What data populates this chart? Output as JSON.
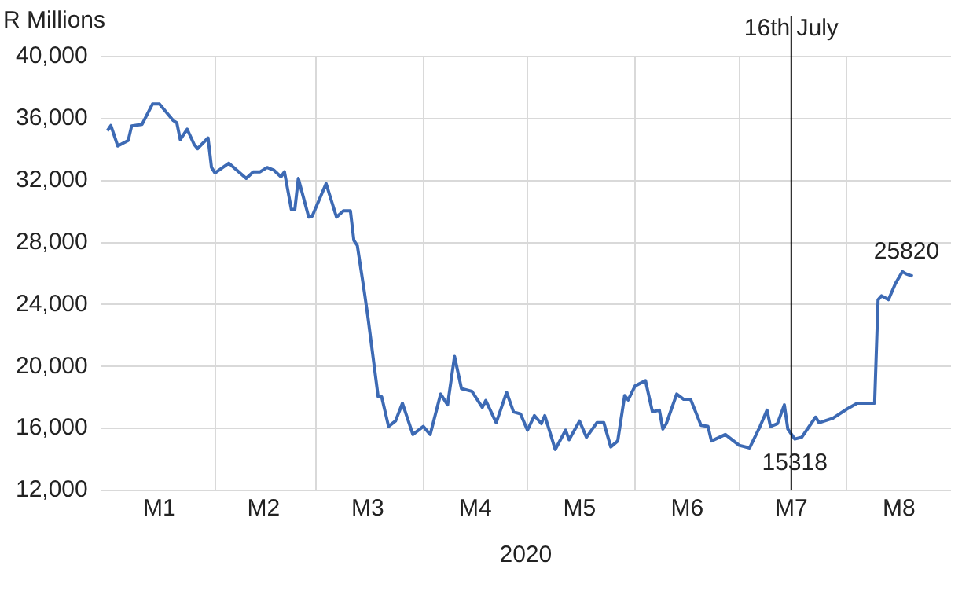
{
  "chart_data": {
    "type": "line",
    "ylabel": "R Millions",
    "xlabel": "2020",
    "x": [
      "2020-01-01",
      "2020-01-02",
      "2020-01-04",
      "2020-01-07",
      "2020-01-08",
      "2020-01-11",
      "2020-01-14",
      "2020-01-16",
      "2020-01-20",
      "2020-01-21",
      "2020-01-22",
      "2020-01-24",
      "2020-01-26",
      "2020-01-27",
      "2020-01-30",
      "2020-01-31",
      "2020-02-01",
      "2020-02-05",
      "2020-02-10",
      "2020-02-12",
      "2020-02-14",
      "2020-02-16",
      "2020-02-18",
      "2020-02-20",
      "2020-02-21",
      "2020-02-23",
      "2020-02-24",
      "2020-02-25",
      "2020-02-28",
      "2020-02-29",
      "2020-03-04",
      "2020-03-07",
      "2020-03-09",
      "2020-03-11",
      "2020-03-12",
      "2020-03-13",
      "2020-03-15",
      "2020-03-16",
      "2020-03-19",
      "2020-03-20",
      "2020-03-22",
      "2020-03-24",
      "2020-03-26",
      "2020-03-29",
      "2020-04-01",
      "2020-04-03",
      "2020-04-06",
      "2020-04-08",
      "2020-04-10",
      "2020-04-12",
      "2020-04-15",
      "2020-04-18",
      "2020-04-19",
      "2020-04-22",
      "2020-04-25",
      "2020-04-27",
      "2020-04-29",
      "2020-05-01",
      "2020-05-03",
      "2020-05-05",
      "2020-05-06",
      "2020-05-09",
      "2020-05-12",
      "2020-05-13",
      "2020-05-16",
      "2020-05-18",
      "2020-05-21",
      "2020-05-23",
      "2020-05-25",
      "2020-05-27",
      "2020-05-29",
      "2020-05-30",
      "2020-06-01",
      "2020-06-04",
      "2020-06-06",
      "2020-06-08",
      "2020-06-09",
      "2020-06-10",
      "2020-06-13",
      "2020-06-15",
      "2020-06-17",
      "2020-06-20",
      "2020-06-22",
      "2020-06-23",
      "2020-06-27",
      "2020-07-01",
      "2020-07-04",
      "2020-07-07",
      "2020-07-09",
      "2020-07-10",
      "2020-07-12",
      "2020-07-14",
      "2020-07-15",
      "2020-07-17",
      "2020-07-19",
      "2020-07-23",
      "2020-07-24",
      "2020-07-28",
      "2020-08-01",
      "2020-08-04",
      "2020-08-09",
      "2020-08-10",
      "2020-08-11",
      "2020-08-13",
      "2020-08-15",
      "2020-08-17",
      "2020-08-18",
      "2020-08-20"
    ],
    "series": [
      {
        "color": "#3d6ab4",
        "values": [
          35210,
          35550,
          34230,
          34580,
          35530,
          35630,
          36940,
          36940,
          35870,
          35730,
          34640,
          35310,
          34330,
          34060,
          34750,
          32840,
          32490,
          33120,
          32140,
          32560,
          32560,
          32840,
          32660,
          32240,
          32560,
          30130,
          30130,
          32140,
          29640,
          29700,
          31800,
          29640,
          30050,
          30050,
          28140,
          27800,
          24840,
          23270,
          18050,
          18050,
          16130,
          16480,
          17630,
          15610,
          16130,
          15610,
          18220,
          17520,
          20650,
          18570,
          18400,
          17360,
          17800,
          16370,
          18330,
          17070,
          16940,
          15890,
          16830,
          16310,
          16830,
          14640,
          15890,
          15270,
          16480,
          15430,
          16370,
          16370,
          14810,
          15190,
          18120,
          17840,
          18740,
          19090,
          17070,
          17180,
          15960,
          16310,
          18220,
          17880,
          17880,
          16200,
          16130,
          15190,
          15610,
          14910,
          14740,
          16130,
          17180,
          16130,
          16310,
          17520,
          15960,
          15318,
          15430,
          16730,
          16370,
          16660,
          17250,
          17630,
          17630,
          24310,
          24560,
          24310,
          25350,
          26120,
          25980,
          25820
        ]
      }
    ],
    "xlim": [
      "2019-12-30",
      "2020-08-31"
    ],
    "xticks": [
      {
        "value": "2020-01-16",
        "label": "M1"
      },
      {
        "value": "2020-02-01",
        "label": null
      },
      {
        "value": "2020-02-15",
        "label": "M2"
      },
      {
        "value": "2020-03-01",
        "label": null
      },
      {
        "value": "2020-03-16",
        "label": "M3"
      },
      {
        "value": "2020-04-01",
        "label": null
      },
      {
        "value": "2020-04-16",
        "label": "M4"
      },
      {
        "value": "2020-05-01",
        "label": null
      },
      {
        "value": "2020-05-16",
        "label": "M5"
      },
      {
        "value": "2020-06-01",
        "label": null
      },
      {
        "value": "2020-06-16",
        "label": "M6"
      },
      {
        "value": "2020-07-01",
        "label": null
      },
      {
        "value": "2020-07-16",
        "label": "M7"
      },
      {
        "value": "2020-08-01",
        "label": null
      },
      {
        "value": "2020-08-16",
        "label": "M8"
      }
    ],
    "ylim": [
      12000,
      40000
    ],
    "yticks": [
      {
        "value": 12000,
        "label": "12,000"
      },
      {
        "value": 16000,
        "label": "16,000"
      },
      {
        "value": 20000,
        "label": "20,000"
      },
      {
        "value": 24000,
        "label": "24,000"
      },
      {
        "value": 28000,
        "label": "28,000"
      },
      {
        "value": 32000,
        "label": "32,000"
      },
      {
        "value": 36000,
        "label": "36,000"
      },
      {
        "value": 40000,
        "label": "40,000"
      }
    ],
    "grid": true,
    "ref_lines": [
      {
        "axis": "x",
        "value": "2020-07-16",
        "label": "16th July",
        "color": "#000000"
      }
    ],
    "annotations": [
      {
        "text": "25820",
        "x": "2020-08-20",
        "y": 25820
      },
      {
        "text": "15318",
        "x": "2020-07-17",
        "y": 15318
      }
    ]
  }
}
